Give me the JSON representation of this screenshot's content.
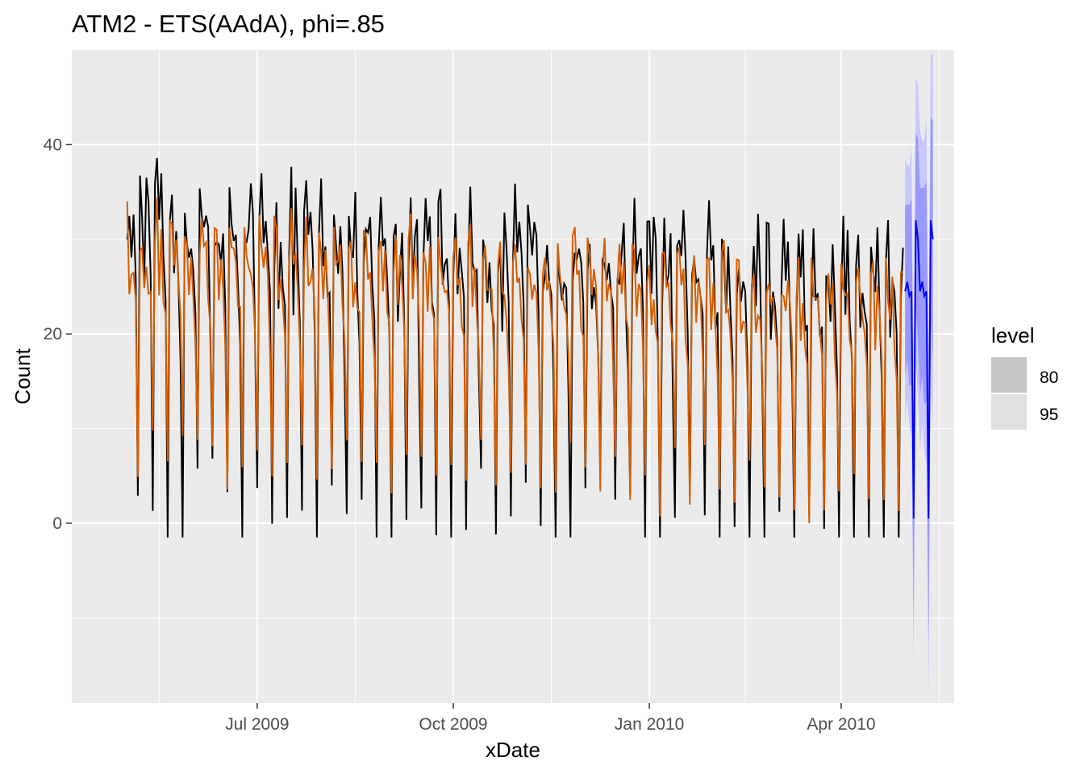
{
  "chart_data": {
    "type": "line",
    "title": "ATM2 - ETS(AAdA), phi=.85",
    "xlabel": "xDate",
    "ylabel": "Count",
    "x_range": [
      "2009-04-05",
      "2010-05-24"
    ],
    "ylim": [
      -19,
      50
    ],
    "x_ticks": [
      {
        "date": "2009-07-01",
        "label": "Jul 2009"
      },
      {
        "date": "2009-10-01",
        "label": "Oct 2009"
      },
      {
        "date": "2010-01-01",
        "label": "Jan 2010"
      },
      {
        "date": "2010-04-01",
        "label": "Apr 2010"
      }
    ],
    "y_ticks": [
      0,
      20,
      40
    ],
    "grid": true,
    "legend": {
      "title": "level",
      "position": "right",
      "entries": [
        {
          "label": "80",
          "color": "#c7c7c7"
        },
        {
          "label": "95",
          "color": "#e0e0e0"
        }
      ]
    },
    "colors": {
      "observed": "#000000",
      "fitted": "#d55e00",
      "forecast": "#0000ff",
      "pi80": "#9999ff",
      "pi95": "#c8c8ff",
      "panel": "#ebebeb",
      "grid": "#ffffff"
    },
    "weekly_pattern": {
      "observed": [
        33,
        30,
        22,
        6,
        32,
        34,
        28
      ],
      "fitted": [
        29,
        26,
        22,
        10,
        31,
        32,
        27
      ],
      "forecast": [
        25.5,
        24,
        24.5,
        0.5,
        32,
        30,
        24.5
      ],
      "pi80_half_width": [
        8,
        9,
        9,
        10,
        8,
        9,
        9
      ],
      "pi95_half_width": [
        12,
        13,
        14,
        14,
        13,
        14,
        14
      ]
    },
    "series": [
      {
        "name": "observed",
        "start": "2009-05-01",
        "end": "2010-04-30",
        "level_start": 30,
        "level_end": 24
      },
      {
        "name": "fitted",
        "start": "2009-05-01",
        "end": "2010-04-30",
        "level_start": 28,
        "level_end": 22
      },
      {
        "name": "forecast",
        "start": "2010-05-01",
        "end": "2010-05-14"
      }
    ]
  }
}
